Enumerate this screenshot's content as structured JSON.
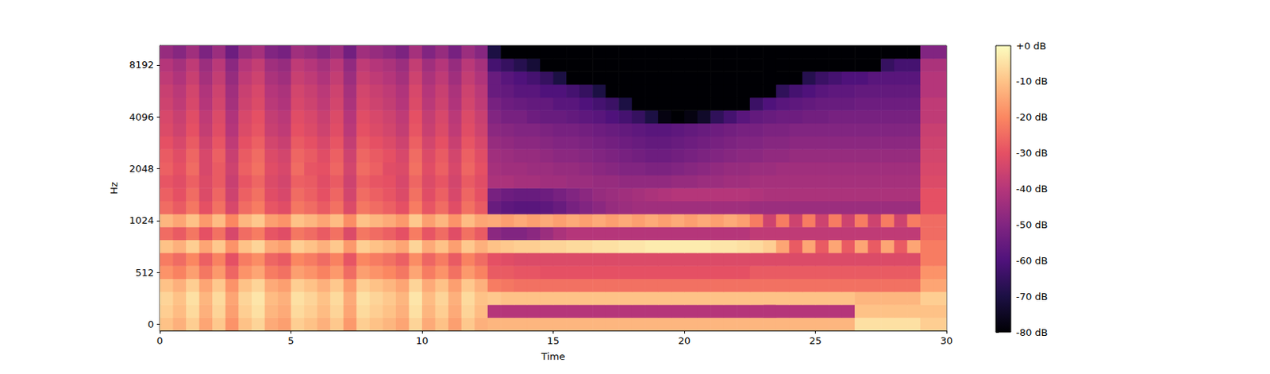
{
  "chart_data": {
    "type": "heatmap",
    "x_label": "Time",
    "y_label": "Hz",
    "xlim": [
      0,
      30
    ],
    "xticks": [
      0,
      5,
      10,
      15,
      20,
      25,
      30
    ],
    "time_bins": [
      0,
      0.5,
      1,
      1.5,
      2,
      2.5,
      3,
      3.5,
      4,
      4.5,
      5,
      5.5,
      6,
      6.5,
      7,
      7.5,
      8,
      8.5,
      9,
      9.5,
      10,
      10.5,
      11,
      11.5,
      12,
      12.5,
      13,
      13.5,
      14,
      14.5,
      15,
      15.5,
      16,
      16.5,
      17,
      17.5,
      18,
      18.5,
      19,
      19.5,
      20,
      20.5,
      21,
      21.5,
      22,
      22.5,
      23,
      23.5,
      24,
      24.5,
      25,
      25.5,
      26,
      26.5,
      27,
      27.5,
      28,
      28.5,
      29,
      29.5,
      30
    ],
    "y_categories": [
      0,
      null,
      null,
      null,
      512,
      null,
      null,
      null,
      1024,
      null,
      null,
      null,
      2048,
      null,
      null,
      null,
      4096,
      null,
      null,
      null,
      8192,
      null
    ],
    "cells": [
      [
        -10,
        -13,
        -8,
        -15,
        -9,
        -18,
        -10,
        -7,
        -14,
        -16,
        -8,
        -10,
        -13,
        -9,
        -17,
        -8,
        -10,
        -12,
        -15,
        -7,
        -14,
        -10,
        -16,
        -9,
        -13,
        -12,
        -12,
        -12,
        -12,
        -12,
        -12,
        -12,
        -12,
        -12,
        -12,
        -12,
        -12,
        -12,
        -12,
        -12,
        -12,
        -12,
        -12,
        -12,
        -12,
        -12,
        -12,
        -12,
        -12,
        -12,
        -12,
        -12,
        -12,
        -5,
        -5,
        -5,
        -5,
        -5,
        -8,
        -8
      ],
      [
        -8,
        -11,
        -6,
        -13,
        -7,
        -16,
        -8,
        -5,
        -12,
        -14,
        -6,
        -8,
        -11,
        -7,
        -15,
        -6,
        -8,
        -10,
        -13,
        -5,
        -12,
        -8,
        -14,
        -7,
        -11,
        -40,
        -40,
        -40,
        -40,
        -40,
        -40,
        -40,
        -40,
        -40,
        -40,
        -40,
        -40,
        -40,
        -40,
        -40,
        -40,
        -40,
        -40,
        -40,
        -40,
        -40,
        -40,
        -40,
        -40,
        -40,
        -40,
        -40,
        -40,
        -10,
        -10,
        -10,
        -10,
        -10,
        -10,
        -10
      ],
      [
        -7,
        -10,
        -5,
        -12,
        -6,
        -15,
        -7,
        -4,
        -11,
        -13,
        -5,
        -7,
        -10,
        -6,
        -14,
        -5,
        -7,
        -9,
        -12,
        -4,
        -11,
        -7,
        -13,
        -6,
        -10,
        -9,
        -10,
        -10,
        -10,
        -10,
        -10,
        -10,
        -10,
        -10,
        -10,
        -10,
        -10,
        -10,
        -10,
        -10,
        -10,
        -10,
        -10,
        -10,
        -10,
        -10,
        -10,
        -10,
        -10,
        -10,
        -10,
        -10,
        -10,
        -12,
        -12,
        -12,
        -12,
        -12,
        -8,
        -8
      ],
      [
        -10,
        -13,
        -8,
        -15,
        -9,
        -18,
        -10,
        -7,
        -14,
        -16,
        -8,
        -10,
        -13,
        -9,
        -17,
        -8,
        -10,
        -12,
        -15,
        -7,
        -14,
        -10,
        -16,
        -9,
        -13,
        -22,
        -23,
        -24,
        -24,
        -24,
        -24,
        -24,
        -24,
        -24,
        -24,
        -24,
        -24,
        -24,
        -24,
        -24,
        -24,
        -24,
        -24,
        -24,
        -24,
        -24,
        -24,
        -24,
        -24,
        -24,
        -24,
        -24,
        -24,
        -24,
        -24,
        -24,
        -24,
        -24,
        -15,
        -15
      ],
      [
        -18,
        -21,
        -16,
        -23,
        -17,
        -26,
        -18,
        -15,
        -22,
        -24,
        -16,
        -18,
        -21,
        -17,
        -25,
        -16,
        -18,
        -20,
        -23,
        -15,
        -22,
        -18,
        -24,
        -17,
        -21,
        -28,
        -28,
        -29,
        -29,
        -30,
        -30,
        -30,
        -30,
        -30,
        -30,
        -30,
        -30,
        -30,
        -30,
        -30,
        -30,
        -30,
        -30,
        -30,
        -30,
        -28,
        -28,
        -28,
        -28,
        -28,
        -28,
        -28,
        -28,
        -28,
        -28,
        -28,
        -28,
        -28,
        -18,
        -18
      ],
      [
        -22,
        -25,
        -20,
        -27,
        -21,
        -30,
        -22,
        -19,
        -26,
        -28,
        -20,
        -22,
        -25,
        -21,
        -29,
        -20,
        -22,
        -24,
        -27,
        -19,
        -26,
        -22,
        -28,
        -21,
        -25,
        -30,
        -31,
        -32,
        -32,
        -32,
        -32,
        -32,
        -32,
        -32,
        -32,
        -32,
        -32,
        -32,
        -32,
        -32,
        -32,
        -32,
        -32,
        -32,
        -32,
        -32,
        -32,
        -32,
        -32,
        -32,
        -32,
        -32,
        -32,
        -32,
        -32,
        -32,
        -32,
        -32,
        -22,
        -22
      ],
      [
        -10,
        -13,
        -8,
        -15,
        -9,
        -18,
        -10,
        -7,
        -14,
        -16,
        -8,
        -10,
        -13,
        -9,
        -17,
        -8,
        -10,
        -12,
        -15,
        -7,
        -14,
        -10,
        -16,
        -9,
        -13,
        -10,
        -9,
        -8,
        -8,
        -7,
        -7,
        -6,
        -6,
        -5,
        -5,
        -4,
        -4,
        -3,
        -3,
        -3,
        -3,
        -3,
        -4,
        -4,
        -5,
        -6,
        -8,
        -15,
        -28,
        -15,
        -28,
        -15,
        -28,
        -15,
        -28,
        -15,
        -28,
        -15,
        -22,
        -22
      ],
      [
        -25,
        -28,
        -23,
        -30,
        -24,
        -33,
        -25,
        -22,
        -29,
        -31,
        -23,
        -25,
        -28,
        -24,
        -32,
        -23,
        -25,
        -27,
        -30,
        -22,
        -29,
        -25,
        -31,
        -24,
        -28,
        -48,
        -50,
        -50,
        -48,
        -45,
        -42,
        -40,
        -40,
        -40,
        -40,
        -40,
        -40,
        -40,
        -40,
        -40,
        -40,
        -40,
        -40,
        -40,
        -40,
        -38,
        -38,
        -38,
        -38,
        -38,
        -38,
        -38,
        -38,
        -38,
        -38,
        -38,
        -38,
        -38,
        -25,
        -25
      ],
      [
        -12,
        -15,
        -10,
        -17,
        -11,
        -20,
        -12,
        -9,
        -16,
        -18,
        -10,
        -12,
        -15,
        -11,
        -19,
        -10,
        -12,
        -14,
        -17,
        -9,
        -16,
        -12,
        -18,
        -11,
        -15,
        -14,
        -16,
        -14,
        -16,
        -14,
        -16,
        -14,
        -16,
        -14,
        -16,
        -14,
        -16,
        -14,
        -16,
        -14,
        -16,
        -14,
        -16,
        -14,
        -16,
        -22,
        -35,
        -22,
        -35,
        -22,
        -35,
        -22,
        -35,
        -22,
        -35,
        -22,
        -35,
        -22,
        -25,
        -25
      ],
      [
        -25,
        -28,
        -23,
        -30,
        -24,
        -33,
        -25,
        -22,
        -29,
        -31,
        -23,
        -25,
        -28,
        -24,
        -32,
        -23,
        -25,
        -27,
        -30,
        -22,
        -29,
        -25,
        -31,
        -24,
        -28,
        -55,
        -57,
        -58,
        -58,
        -57,
        -55,
        -52,
        -50,
        -48,
        -46,
        -45,
        -44,
        -44,
        -44,
        -44,
        -44,
        -44,
        -44,
        -44,
        -44,
        -45,
        -45,
        -45,
        -45,
        -45,
        -45,
        -45,
        -45,
        -45,
        -45,
        -45,
        -45,
        -45,
        -30,
        -30
      ],
      [
        -27,
        -30,
        -25,
        -32,
        -26,
        -35,
        -27,
        -24,
        -31,
        -33,
        -25,
        -27,
        -30,
        -26,
        -34,
        -25,
        -27,
        -29,
        -32,
        -24,
        -31,
        -27,
        -33,
        -26,
        -30,
        -52,
        -54,
        -55,
        -55,
        -54,
        -52,
        -50,
        -48,
        -46,
        -45,
        -44,
        -43,
        -42,
        -41,
        -40,
        -40,
        -40,
        -40,
        -40,
        -40,
        -41,
        -42,
        -42,
        -42,
        -42,
        -42,
        -42,
        -42,
        -42,
        -42,
        -42,
        -42,
        -42,
        -30,
        -30
      ],
      [
        -29,
        -31,
        -27,
        -32,
        -28,
        -36,
        -29,
        -26,
        -32,
        -34,
        -27,
        -28,
        -31,
        -28,
        -35,
        -27,
        -29,
        -30,
        -33,
        -26,
        -32,
        -29,
        -34,
        -28,
        -31,
        -42,
        -42,
        -43,
        -43,
        -44,
        -44,
        -45,
        -45,
        -46,
        -46,
        -47,
        -47,
        -47,
        -47,
        -46,
        -46,
        -45,
        -45,
        -44,
        -44,
        -43,
        -43,
        -43,
        -43,
        -43,
        -43,
        -43,
        -43,
        -43,
        -43,
        -43,
        -43,
        -43,
        -32,
        -32
      ],
      [
        -27,
        -30,
        -25,
        -33,
        -28,
        -35,
        -27,
        -24,
        -31,
        -33,
        -25,
        -29,
        -30,
        -26,
        -34,
        -25,
        -27,
        -31,
        -32,
        -24,
        -31,
        -27,
        -33,
        -26,
        -30,
        -43,
        -44,
        -44,
        -45,
        -45,
        -46,
        -46,
        -47,
        -48,
        -49,
        -50,
        -50,
        -51,
        -51,
        -50,
        -49,
        -48,
        -47,
        -46,
        -46,
        -45,
        -45,
        -44,
        -44,
        -44,
        -44,
        -44,
        -44,
        -44,
        -44,
        -44,
        -44,
        -44,
        -33,
        -33
      ],
      [
        -28,
        -31,
        -26,
        -33,
        -27,
        -36,
        -28,
        -25,
        -32,
        -34,
        -26,
        -28,
        -31,
        -27,
        -35,
        -26,
        -28,
        -30,
        -33,
        -25,
        -32,
        -28,
        -34,
        -27,
        -31,
        -44,
        -45,
        -46,
        -46,
        -47,
        -48,
        -48,
        -49,
        -50,
        -51,
        -52,
        -53,
        -54,
        -54,
        -53,
        -52,
        -51,
        -50,
        -49,
        -48,
        -48,
        -47,
        -47,
        -46,
        -46,
        -46,
        -46,
        -46,
        -46,
        -46,
        -46,
        -46,
        -46,
        -34,
        -34
      ],
      [
        -30,
        -33,
        -28,
        -35,
        -29,
        -38,
        -30,
        -27,
        -34,
        -36,
        -28,
        -30,
        -33,
        -29,
        -37,
        -28,
        -30,
        -32,
        -35,
        -27,
        -34,
        -30,
        -36,
        -29,
        -33,
        -46,
        -47,
        -48,
        -48,
        -49,
        -50,
        -50,
        -51,
        -52,
        -53,
        -54,
        -55,
        -56,
        -56,
        -55,
        -54,
        -53,
        -52,
        -51,
        -50,
        -50,
        -49,
        -49,
        -48,
        -48,
        -48,
        -48,
        -48,
        -48,
        -48,
        -48,
        -48,
        -48,
        -35,
        -35
      ],
      [
        -32,
        -35,
        -30,
        -37,
        -31,
        -40,
        -32,
        -29,
        -36,
        -38,
        -30,
        -32,
        -35,
        -31,
        -39,
        -30,
        -32,
        -34,
        -37,
        -29,
        -36,
        -32,
        -38,
        -31,
        -35,
        -48,
        -49,
        -50,
        -50,
        -51,
        -52,
        -52,
        -53,
        -54,
        -55,
        -56,
        -57,
        -58,
        -58,
        -57,
        -56,
        -55,
        -54,
        -53,
        -52,
        -52,
        -51,
        -51,
        -50,
        -50,
        -50,
        -50,
        -50,
        -50,
        -50,
        -50,
        -50,
        -50,
        -36,
        -36
      ],
      [
        -33,
        -36,
        -31,
        -38,
        -32,
        -41,
        -33,
        -30,
        -37,
        -39,
        -31,
        -33,
        -36,
        -32,
        -40,
        -31,
        -33,
        -35,
        -38,
        -30,
        -37,
        -33,
        -39,
        -32,
        -36,
        -50,
        -52,
        -52,
        -54,
        -55,
        -55,
        -56,
        -57,
        -58,
        -60,
        -62,
        -65,
        -70,
        -78,
        -80,
        -78,
        -74,
        -66,
        -62,
        -58,
        -56,
        -55,
        -54,
        -54,
        -53,
        -53,
        -52,
        -52,
        -52,
        -52,
        -52,
        -52,
        -52,
        -38,
        -38
      ],
      [
        -35,
        -38,
        -33,
        -40,
        -34,
        -43,
        -35,
        -32,
        -39,
        -41,
        -33,
        -35,
        -38,
        -34,
        -42,
        -33,
        -35,
        -37,
        -40,
        -32,
        -39,
        -35,
        -41,
        -34,
        -38,
        -52,
        -54,
        -55,
        -56,
        -56,
        -58,
        -58,
        -60,
        -62,
        -64,
        -70,
        -80,
        -80,
        -80,
        -80,
        -80,
        -80,
        -80,
        -80,
        -80,
        -64,
        -60,
        -58,
        -57,
        -56,
        -55,
        -55,
        -55,
        -54,
        -54,
        -54,
        -54,
        -54,
        -38,
        -38
      ],
      [
        -36,
        -39,
        -34,
        -41,
        -35,
        -44,
        -36,
        -33,
        -40,
        -42,
        -34,
        -36,
        -39,
        -35,
        -43,
        -34,
        -36,
        -38,
        -41,
        -33,
        -40,
        -36,
        -42,
        -35,
        -39,
        -55,
        -56,
        -58,
        -58,
        -60,
        -60,
        -62,
        -65,
        -70,
        -80,
        -80,
        -80,
        -80,
        -80,
        -80,
        -80,
        -80,
        -80,
        -80,
        -80,
        -80,
        -80,
        -66,
        -62,
        -60,
        -58,
        -57,
        -57,
        -56,
        -56,
        -56,
        -56,
        -56,
        -40,
        -40
      ],
      [
        -38,
        -41,
        -36,
        -43,
        -37,
        -46,
        -38,
        -35,
        -42,
        -44,
        -36,
        -38,
        -41,
        -37,
        -45,
        -36,
        -38,
        -40,
        -43,
        -35,
        -42,
        -38,
        -44,
        -37,
        -41,
        -55,
        -58,
        -60,
        -62,
        -65,
        -70,
        -80,
        -80,
        -80,
        -80,
        -80,
        -80,
        -80,
        -80,
        -80,
        -80,
        -80,
        -80,
        -80,
        -80,
        -80,
        -80,
        -80,
        -80,
        -68,
        -64,
        -62,
        -60,
        -60,
        -58,
        -58,
        -58,
        -58,
        -40,
        -40
      ],
      [
        -40,
        -43,
        -38,
        -45,
        -39,
        -48,
        -40,
        -37,
        -44,
        -46,
        -38,
        -40,
        -43,
        -39,
        -47,
        -38,
        -40,
        -42,
        -45,
        -37,
        -44,
        -40,
        -46,
        -39,
        -43,
        -62,
        -65,
        -68,
        -72,
        -80,
        -80,
        -80,
        -80,
        -80,
        -80,
        -80,
        -80,
        -80,
        -80,
        -80,
        -80,
        -80,
        -80,
        -80,
        -80,
        -80,
        -80,
        -80,
        -80,
        -80,
        -80,
        -80,
        -80,
        -80,
        -80,
        -65,
        -62,
        -62,
        -42,
        -42
      ],
      [
        -46,
        -49,
        -44,
        -51,
        -45,
        -54,
        -46,
        -43,
        -50,
        -52,
        -44,
        -46,
        -49,
        -45,
        -53,
        -44,
        -46,
        -48,
        -51,
        -43,
        -50,
        -46,
        -52,
        -45,
        -49,
        -70,
        -80,
        -80,
        -80,
        -80,
        -80,
        -80,
        -80,
        -80,
        -80,
        -80,
        -80,
        -80,
        -80,
        -80,
        -80,
        -80,
        -80,
        -80,
        -80,
        -80,
        -80,
        -80,
        -80,
        -80,
        -80,
        -80,
        -80,
        -80,
        -80,
        -80,
        -80,
        -80,
        -50,
        -50
      ]
    ],
    "colorbar": {
      "range": [
        -80,
        0
      ],
      "ticks": [
        {
          "value": 0,
          "label": "+0 dB"
        },
        {
          "value": -10,
          "label": "-10 dB"
        },
        {
          "value": -20,
          "label": "-20 dB"
        },
        {
          "value": -30,
          "label": "-30 dB"
        },
        {
          "value": -40,
          "label": "-40 dB"
        },
        {
          "value": -50,
          "label": "-50 dB"
        },
        {
          "value": -60,
          "label": "-60 dB"
        },
        {
          "value": -70,
          "label": "-70 dB"
        },
        {
          "value": -80,
          "label": "-80 dB"
        }
      ]
    },
    "color": "magma",
    "grid": false
  }
}
